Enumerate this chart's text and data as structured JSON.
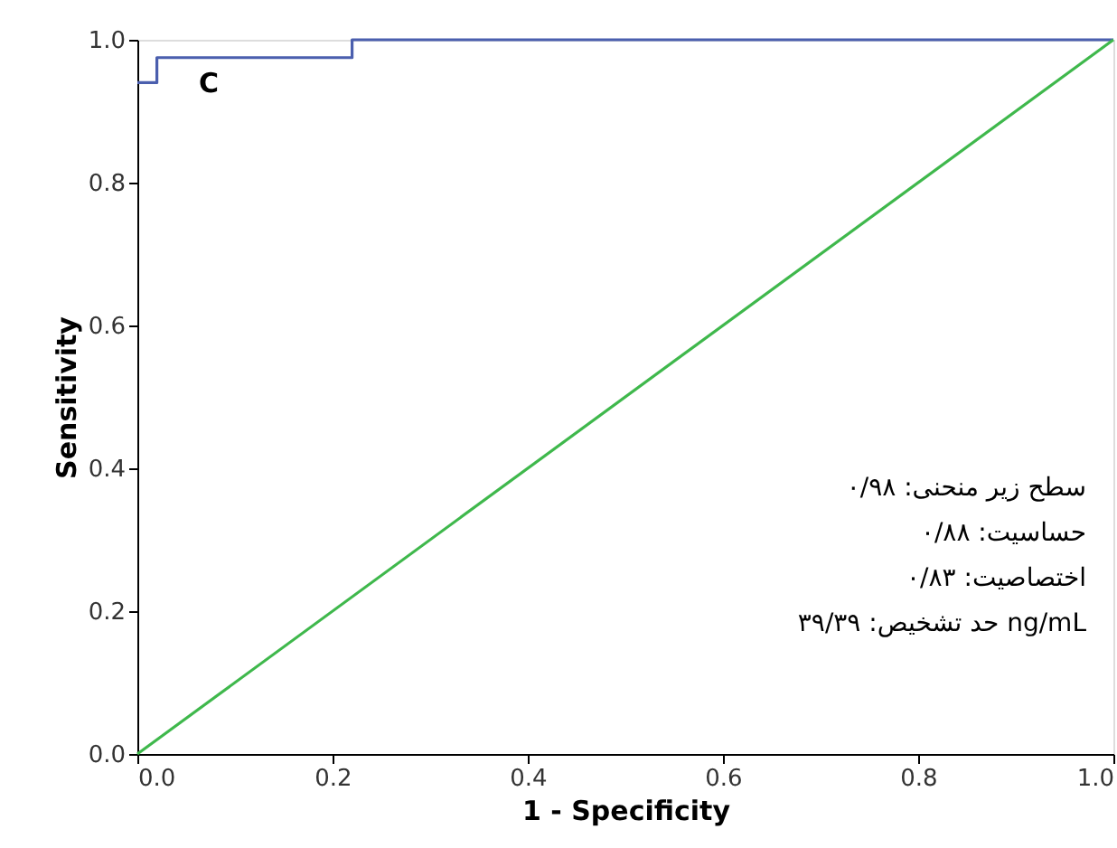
{
  "chart_data": {
    "type": "line",
    "xlabel": "1 - Specificity",
    "ylabel": "Sensitivity",
    "series": [
      {
        "type": "step",
        "color": "#4b5fae",
        "x": [
          0,
          0.02,
          0.22,
          1
        ],
        "values": [
          0.94,
          0.975,
          1,
          1
        ]
      },
      {
        "color": "#3fb84c",
        "x": [
          0,
          1
        ],
        "values": [
          0,
          1
        ]
      }
    ],
    "xlim": [
      0,
      1
    ],
    "ylim": [
      0,
      1
    ],
    "xticks": [
      {
        "value": 0,
        "label": "0.0"
      },
      {
        "value": 0.2,
        "label": "0.2"
      },
      {
        "value": 0.4,
        "label": "0.4"
      },
      {
        "value": 0.6,
        "label": "0.6"
      },
      {
        "value": 0.8,
        "label": "0.8"
      },
      {
        "value": 1,
        "label": "1.0"
      }
    ],
    "yticks": [
      {
        "value": 0,
        "label": "0.0"
      },
      {
        "value": 0.2,
        "label": "0.2"
      },
      {
        "value": 0.4,
        "label": "0.4"
      },
      {
        "value": 0.6,
        "label": "0.6"
      },
      {
        "value": 0.8,
        "label": "0.8"
      },
      {
        "value": 1,
        "label": "1.0"
      }
    ],
    "annotations": [
      "C",
      "سطح زیر منحنی: ۰/۹۸",
      "حساسیت: ۰/۸۸",
      "اختصاصیت: ۰/۸۳",
      "حد تشخیص: ۳۹/۳۹ ng/mL"
    ],
    "grid": false,
    "marker": "none",
    "line_style": "solid"
  }
}
